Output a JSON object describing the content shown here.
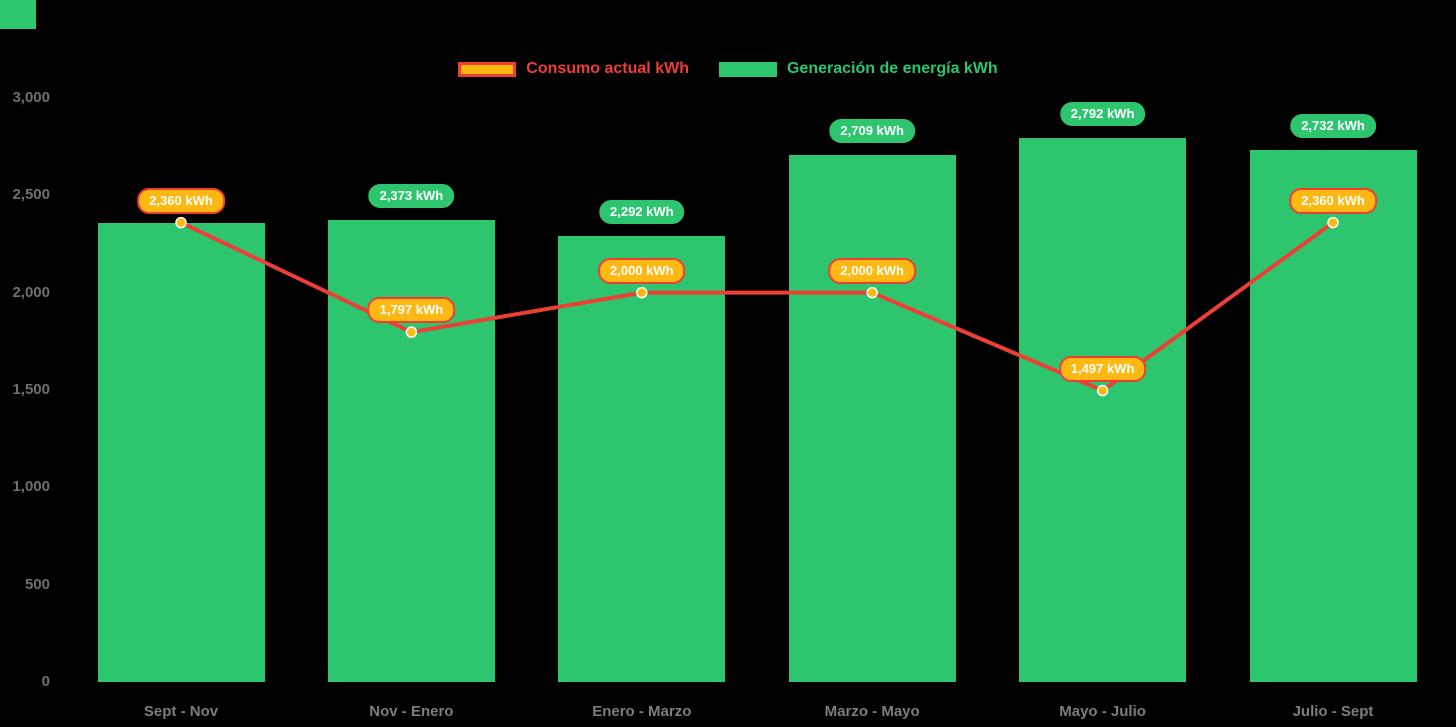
{
  "page": {
    "background": "#000000",
    "corner_square_color": "#2dc66f"
  },
  "legend": {
    "position": "top-center",
    "items": [
      {
        "label": "Consumo actual kWh",
        "swatch_fill": "#fdb813",
        "swatch_border": "#ee3e36",
        "text_color": "#ee3e36"
      },
      {
        "label": "Generación de energía kWh",
        "swatch_fill": "#2dc66f",
        "swatch_border": "#2dc66f",
        "text_color": "#2dc66f"
      }
    ]
  },
  "chart_data": {
    "type": "bar",
    "subtype": "bar-with-line-overlay",
    "categories": [
      "Sept - Nov",
      "Nov - Enero",
      "Enero - Marzo",
      "Marzo - Mayo",
      "Mayo - Julio",
      "Julio - Sept"
    ],
    "series": [
      {
        "name": "Generación de energía kWh",
        "mark": "bar",
        "color": "#2dc66f",
        "values": [
          2360,
          2373,
          2292,
          2709,
          2792,
          2732
        ],
        "labels": [
          "2,360 kWh",
          "2,373 kWh",
          "2,292 kWh",
          "2,709 kWh",
          "2,792 kWh",
          "2,732 kWh"
        ],
        "label_visible": [
          false,
          true,
          true,
          true,
          true,
          true
        ],
        "label_fill": "#2dc66f",
        "label_text_color": "#ffffff"
      },
      {
        "name": "Consumo actual kWh",
        "mark": "line",
        "color": "#ee3e36",
        "marker_fill": "#fdb813",
        "marker_stroke": "#ffffff",
        "values": [
          2360,
          1797,
          2000,
          2000,
          1497,
          2360
        ],
        "labels": [
          "2,360 kWh",
          "1,797 kWh",
          "2,000 kWh",
          "2,000 kWh",
          "1,497 kWh",
          "2,360 kWh"
        ],
        "label_fill": "#fdb813",
        "label_border": "#ee3e36",
        "label_text_color": "#ffffff"
      }
    ],
    "yticks": [
      "3,000",
      "2,500",
      "2,000",
      "1,500",
      "1,000",
      "500",
      "0"
    ],
    "ytick_values": [
      3000,
      2500,
      2000,
      1500,
      1000,
      500,
      0
    ],
    "ylim": [
      0,
      3000
    ],
    "grid": false,
    "legend_position": "top-center",
    "title": "",
    "xlabel": "",
    "ylabel": ""
  }
}
